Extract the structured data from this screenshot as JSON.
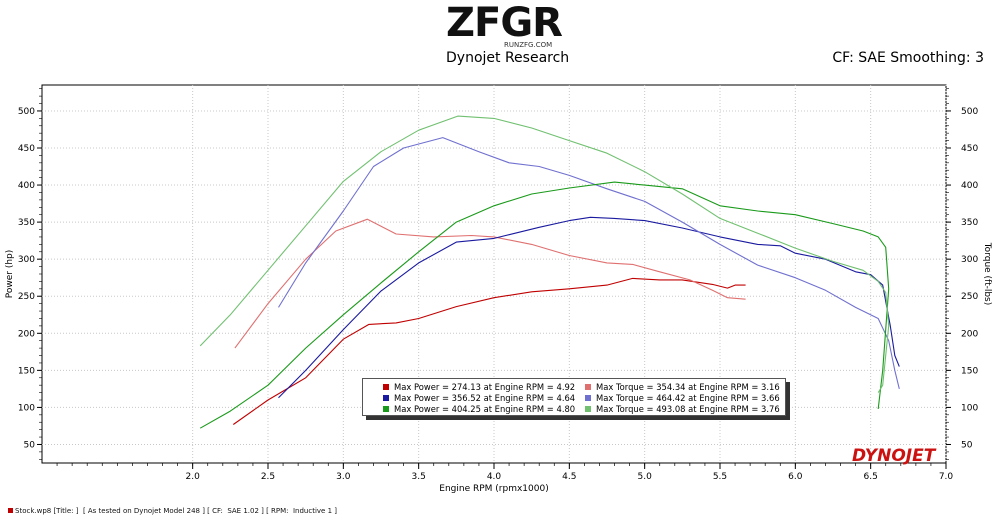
{
  "header": {
    "logo_text": "ZFGR",
    "logo_url": "RUNZFG.COM",
    "title": "Dynojet Research",
    "correction": "CF: SAE Smoothing: 3"
  },
  "brand_watermark": "DYNOJET",
  "footer": {
    "text": "Stock.wp8 [Title: ]  [ As tested on Dynojet Model 248 ] [ CF:  SAE 1.02 ] [ RPM:  Inductive 1 ]"
  },
  "legend": [
    {
      "text": "Max Power = 274.13 at Engine RPM = 4.92",
      "color": "#c00000"
    },
    {
      "text": "Max Torque = 354.34 at Engine RPM = 3.16",
      "color": "#e07070"
    },
    {
      "text": "Max Power = 356.52 at Engine RPM = 4.64",
      "color": "#1a1aa0"
    },
    {
      "text": "Max Torque = 464.42 at Engine RPM = 3.66",
      "color": "#7070d0"
    },
    {
      "text": "Max Power = 404.25 at Engine RPM = 4.80",
      "color": "#1a9a1a"
    },
    {
      "text": "Max Torque = 493.08 at Engine RPM = 3.76",
      "color": "#70c070"
    }
  ],
  "chart_data": {
    "type": "line",
    "xlabel": "Engine RPM (rpmx1000)",
    "ylabel": "Power (hp)",
    "y2label": "Torque (ft-lbs)",
    "xlim": [
      1.0,
      7.0
    ],
    "ylim": [
      25,
      535
    ],
    "y2lim": [
      25,
      535
    ],
    "x_ticks": [
      "2.0",
      "2.5",
      "3.0",
      "3.5",
      "4.0",
      "4.5",
      "5.0",
      "5.5",
      "6.0",
      "6.5",
      "7.0"
    ],
    "y_ticks": [
      "50",
      "100",
      "150",
      "200",
      "250",
      "300",
      "350",
      "400",
      "450",
      "500"
    ],
    "grid": true,
    "series": [
      {
        "name": "Power",
        "axis": "left",
        "color": "#c00000",
        "points": [
          [
            2.27,
            77
          ],
          [
            2.5,
            110
          ],
          [
            2.75,
            140
          ],
          [
            3.0,
            192
          ],
          [
            3.17,
            212
          ],
          [
            3.35,
            214
          ],
          [
            3.5,
            220
          ],
          [
            3.75,
            236
          ],
          [
            4.0,
            248
          ],
          [
            4.25,
            256
          ],
          [
            4.5,
            260
          ],
          [
            4.75,
            265
          ],
          [
            4.92,
            274
          ],
          [
            5.1,
            272
          ],
          [
            5.25,
            272
          ],
          [
            5.45,
            266
          ],
          [
            5.55,
            261
          ],
          [
            5.6,
            265
          ],
          [
            5.67,
            265
          ]
        ]
      },
      {
        "name": "Torque",
        "axis": "right",
        "color": "#e07070",
        "points": [
          [
            2.28,
            180
          ],
          [
            2.5,
            240
          ],
          [
            2.75,
            300
          ],
          [
            2.95,
            338
          ],
          [
            3.16,
            354
          ],
          [
            3.35,
            334
          ],
          [
            3.6,
            330
          ],
          [
            3.85,
            332
          ],
          [
            4.0,
            330
          ],
          [
            4.25,
            320
          ],
          [
            4.5,
            305
          ],
          [
            4.75,
            295
          ],
          [
            4.92,
            293
          ],
          [
            5.1,
            283
          ],
          [
            5.3,
            272
          ],
          [
            5.45,
            258
          ],
          [
            5.55,
            248
          ],
          [
            5.67,
            246
          ]
        ]
      },
      {
        "name": "Power",
        "axis": "left",
        "color": "#1a1aa0",
        "points": [
          [
            2.57,
            113
          ],
          [
            2.75,
            150
          ],
          [
            3.0,
            205
          ],
          [
            3.25,
            257
          ],
          [
            3.5,
            295
          ],
          [
            3.75,
            323
          ],
          [
            4.0,
            328
          ],
          [
            4.1,
            333
          ],
          [
            4.3,
            343
          ],
          [
            4.5,
            352
          ],
          [
            4.64,
            356.5
          ],
          [
            4.8,
            355
          ],
          [
            5.0,
            352
          ],
          [
            5.25,
            342
          ],
          [
            5.5,
            330
          ],
          [
            5.75,
            320
          ],
          [
            5.9,
            318
          ],
          [
            6.0,
            308
          ],
          [
            6.2,
            300
          ],
          [
            6.4,
            283
          ],
          [
            6.5,
            279
          ],
          [
            6.58,
            265
          ],
          [
            6.63,
            210
          ],
          [
            6.66,
            170
          ],
          [
            6.69,
            155
          ]
        ]
      },
      {
        "name": "Torque",
        "axis": "right",
        "color": "#7070d0",
        "points": [
          [
            2.57,
            235
          ],
          [
            2.75,
            295
          ],
          [
            3.0,
            365
          ],
          [
            3.2,
            425
          ],
          [
            3.4,
            450
          ],
          [
            3.66,
            464
          ],
          [
            3.9,
            445
          ],
          [
            4.1,
            430
          ],
          [
            4.3,
            425
          ],
          [
            4.5,
            413
          ],
          [
            4.75,
            395
          ],
          [
            5.0,
            378
          ],
          [
            5.25,
            350
          ],
          [
            5.5,
            320
          ],
          [
            5.75,
            292
          ],
          [
            6.0,
            275
          ],
          [
            6.2,
            258
          ],
          [
            6.4,
            235
          ],
          [
            6.55,
            220
          ],
          [
            6.62,
            190
          ],
          [
            6.66,
            150
          ],
          [
            6.69,
            125
          ]
        ]
      },
      {
        "name": "Power",
        "axis": "left",
        "color": "#1a9a1a",
        "points": [
          [
            2.05,
            72
          ],
          [
            2.25,
            95
          ],
          [
            2.5,
            130
          ],
          [
            2.75,
            180
          ],
          [
            3.0,
            225
          ],
          [
            3.25,
            268
          ],
          [
            3.5,
            310
          ],
          [
            3.75,
            350
          ],
          [
            4.0,
            372
          ],
          [
            4.25,
            388
          ],
          [
            4.5,
            396
          ],
          [
            4.8,
            404
          ],
          [
            5.0,
            400
          ],
          [
            5.25,
            395
          ],
          [
            5.5,
            372
          ],
          [
            5.75,
            365
          ],
          [
            6.0,
            360
          ],
          [
            6.25,
            348
          ],
          [
            6.45,
            338
          ],
          [
            6.55,
            330
          ],
          [
            6.6,
            316
          ],
          [
            6.62,
            260
          ],
          [
            6.58,
            150
          ],
          [
            6.55,
            98
          ]
        ]
      },
      {
        "name": "Torque",
        "axis": "right",
        "color": "#70c070",
        "points": [
          [
            2.05,
            183
          ],
          [
            2.25,
            225
          ],
          [
            2.5,
            285
          ],
          [
            2.75,
            345
          ],
          [
            3.0,
            405
          ],
          [
            3.25,
            445
          ],
          [
            3.5,
            474
          ],
          [
            3.76,
            493
          ],
          [
            4.0,
            490
          ],
          [
            4.25,
            477
          ],
          [
            4.5,
            460
          ],
          [
            4.75,
            443
          ],
          [
            5.0,
            418
          ],
          [
            5.25,
            388
          ],
          [
            5.5,
            355
          ],
          [
            5.75,
            335
          ],
          [
            6.0,
            315
          ],
          [
            6.25,
            297
          ],
          [
            6.45,
            285
          ],
          [
            6.55,
            270
          ],
          [
            6.6,
            255
          ],
          [
            6.62,
            210
          ],
          [
            6.58,
            130
          ],
          [
            6.55,
            120
          ]
        ]
      }
    ]
  }
}
